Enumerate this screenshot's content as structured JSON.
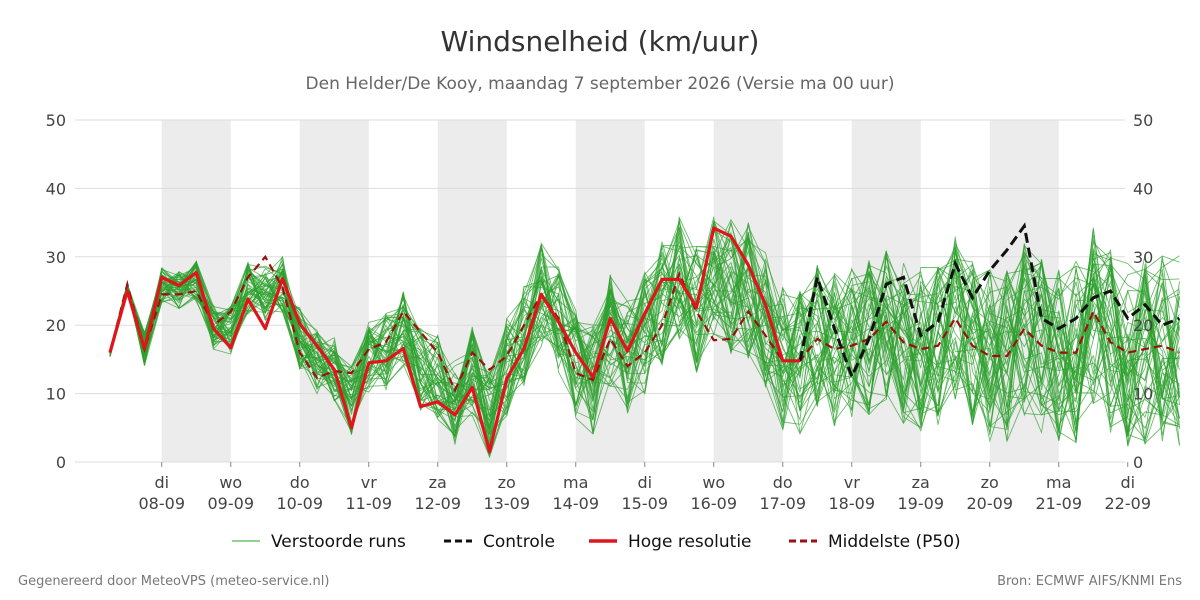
{
  "header": {
    "title": "Windsnelheid (km/uur)",
    "subtitle": "Den Helder/De Kooy, maandag  7 september 2026 (Versie ma 00 uur)"
  },
  "footer": {
    "left": "Gegenereerd door MeteoVPS (meteo-service.nl)",
    "right": "Bron: ECMWF AIFS/KNMI Ens"
  },
  "colors": {
    "ensemble": "#2ca02c",
    "control": "#111111",
    "high_res": "#e0151b",
    "median": "#9b1010",
    "weekend_shade": "#ececec",
    "grid": "#dddddd"
  },
  "chart_data": {
    "type": "line",
    "title": "Windsnelheid (km/uur)",
    "ylim": [
      0,
      50
    ],
    "y_ticks": [
      0,
      10,
      20,
      30,
      40,
      50
    ],
    "x_domain_days": 15.5,
    "x_ticks": [
      {
        "day": "di",
        "date": "08-09"
      },
      {
        "day": "wo",
        "date": "09-09"
      },
      {
        "day": "do",
        "date": "10-09"
      },
      {
        "day": "vr",
        "date": "11-09"
      },
      {
        "day": "za",
        "date": "12-09"
      },
      {
        "day": "zo",
        "date": "13-09"
      },
      {
        "day": "ma",
        "date": "14-09"
      },
      {
        "day": "di",
        "date": "15-09"
      },
      {
        "day": "wo",
        "date": "16-09"
      },
      {
        "day": "do",
        "date": "17-09"
      },
      {
        "day": "vr",
        "date": "18-09"
      },
      {
        "day": "za",
        "date": "19-09"
      },
      {
        "day": "zo",
        "date": "20-09"
      },
      {
        "day": "ma",
        "date": "21-09"
      },
      {
        "day": "di",
        "date": "22-09"
      }
    ],
    "shaded_day_indices": [
      0,
      2,
      4,
      6,
      8,
      10,
      12
    ],
    "legend": {
      "placement": "bottom",
      "items": [
        {
          "label": "Verstoorde runs",
          "style": "thin-solid",
          "color": "#2ca02c"
        },
        {
          "label": "Controle",
          "style": "dashed",
          "color": "#111111"
        },
        {
          "label": "Hoge resolutie",
          "style": "thick-solid",
          "color": "#e0151b"
        },
        {
          "label": "Middelste (P50)",
          "style": "dashed",
          "color": "#9b1010"
        }
      ]
    },
    "series": [
      {
        "name": "Hoge resolutie",
        "x": [
          0,
          0.25,
          0.5,
          0.75,
          1,
          1.25,
          1.5,
          1.75,
          2,
          2.25,
          2.5,
          2.75,
          3,
          3.25,
          3.5,
          3.75,
          4,
          4.25,
          4.5,
          4.75,
          5,
          5.25,
          5.5,
          5.75,
          6,
          6.25,
          6.5,
          6.75,
          7,
          7.25,
          7.5,
          7.75,
          8,
          8.25,
          8.5,
          8.75,
          9,
          9.25,
          9.5,
          9.75,
          10
        ],
        "values": [
          16,
          25,
          16.5,
          27,
          25.8,
          27.7,
          19.5,
          16.7,
          23.8,
          19.5,
          26.8,
          20.2,
          17,
          13.5,
          5,
          14.5,
          14.8,
          16.6,
          8.1,
          8.8,
          6.9,
          10.9,
          1.5,
          12.2,
          16.6,
          24.5,
          20.5,
          16,
          12.4,
          21,
          16.2,
          21.7,
          26.7,
          26.7,
          22.6,
          34.2,
          33,
          28.8,
          23,
          14.8,
          14.8
        ]
      },
      {
        "name": "Controle",
        "x": [
          10,
          10.25,
          10.5,
          10.75,
          11,
          11.25,
          11.5,
          11.75,
          12,
          12.25,
          12.5,
          12.75,
          13,
          13.25,
          13.5,
          13.75,
          14,
          14.25,
          14.5,
          14.75,
          15,
          15.25,
          15.5
        ],
        "values": [
          14.8,
          27,
          19.5,
          12.5,
          18,
          26,
          27,
          18.5,
          20.5,
          29,
          24,
          28,
          31,
          34.5,
          21,
          19.5,
          21,
          24,
          25,
          21,
          23,
          20,
          21
        ]
      },
      {
        "name": "Middelste (P50)",
        "x": [
          0,
          0.25,
          0.5,
          0.75,
          1,
          1.25,
          1.5,
          1.75,
          2,
          2.25,
          2.5,
          2.75,
          3,
          3.25,
          3.5,
          3.75,
          4,
          4.25,
          4.5,
          4.75,
          5,
          5.25,
          5.5,
          5.75,
          6,
          6.25,
          6.5,
          6.75,
          7,
          7.25,
          7.5,
          7.75,
          8,
          8.25,
          8.5,
          8.75,
          9,
          9.25,
          9.5,
          9.75,
          10,
          10.25,
          10.5,
          10.75,
          11,
          11.25,
          11.5,
          11.75,
          12,
          12.25,
          12.5,
          12.75,
          13,
          13.25,
          13.5,
          13.75,
          14,
          14.25,
          14.5,
          14.75,
          15,
          15.25,
          15.5
        ],
        "values": [
          16,
          26,
          16.5,
          24.5,
          24.5,
          25,
          20,
          22,
          27,
          30,
          25.5,
          16,
          12.3,
          13.3,
          13,
          16.5,
          17.5,
          22,
          19,
          16,
          10.5,
          16,
          13.5,
          15.5,
          20,
          24.5,
          21,
          13,
          12,
          18,
          14,
          16,
          20,
          27.5,
          22,
          17.8,
          18,
          22,
          18.5,
          14.8,
          14.8,
          18,
          16.5,
          17,
          18,
          20.5,
          17.5,
          16.5,
          17,
          21,
          17,
          15.5,
          15.5,
          19.5,
          17,
          16,
          16,
          22,
          17.5,
          16,
          16.5,
          17,
          16
        ]
      }
    ]
  }
}
